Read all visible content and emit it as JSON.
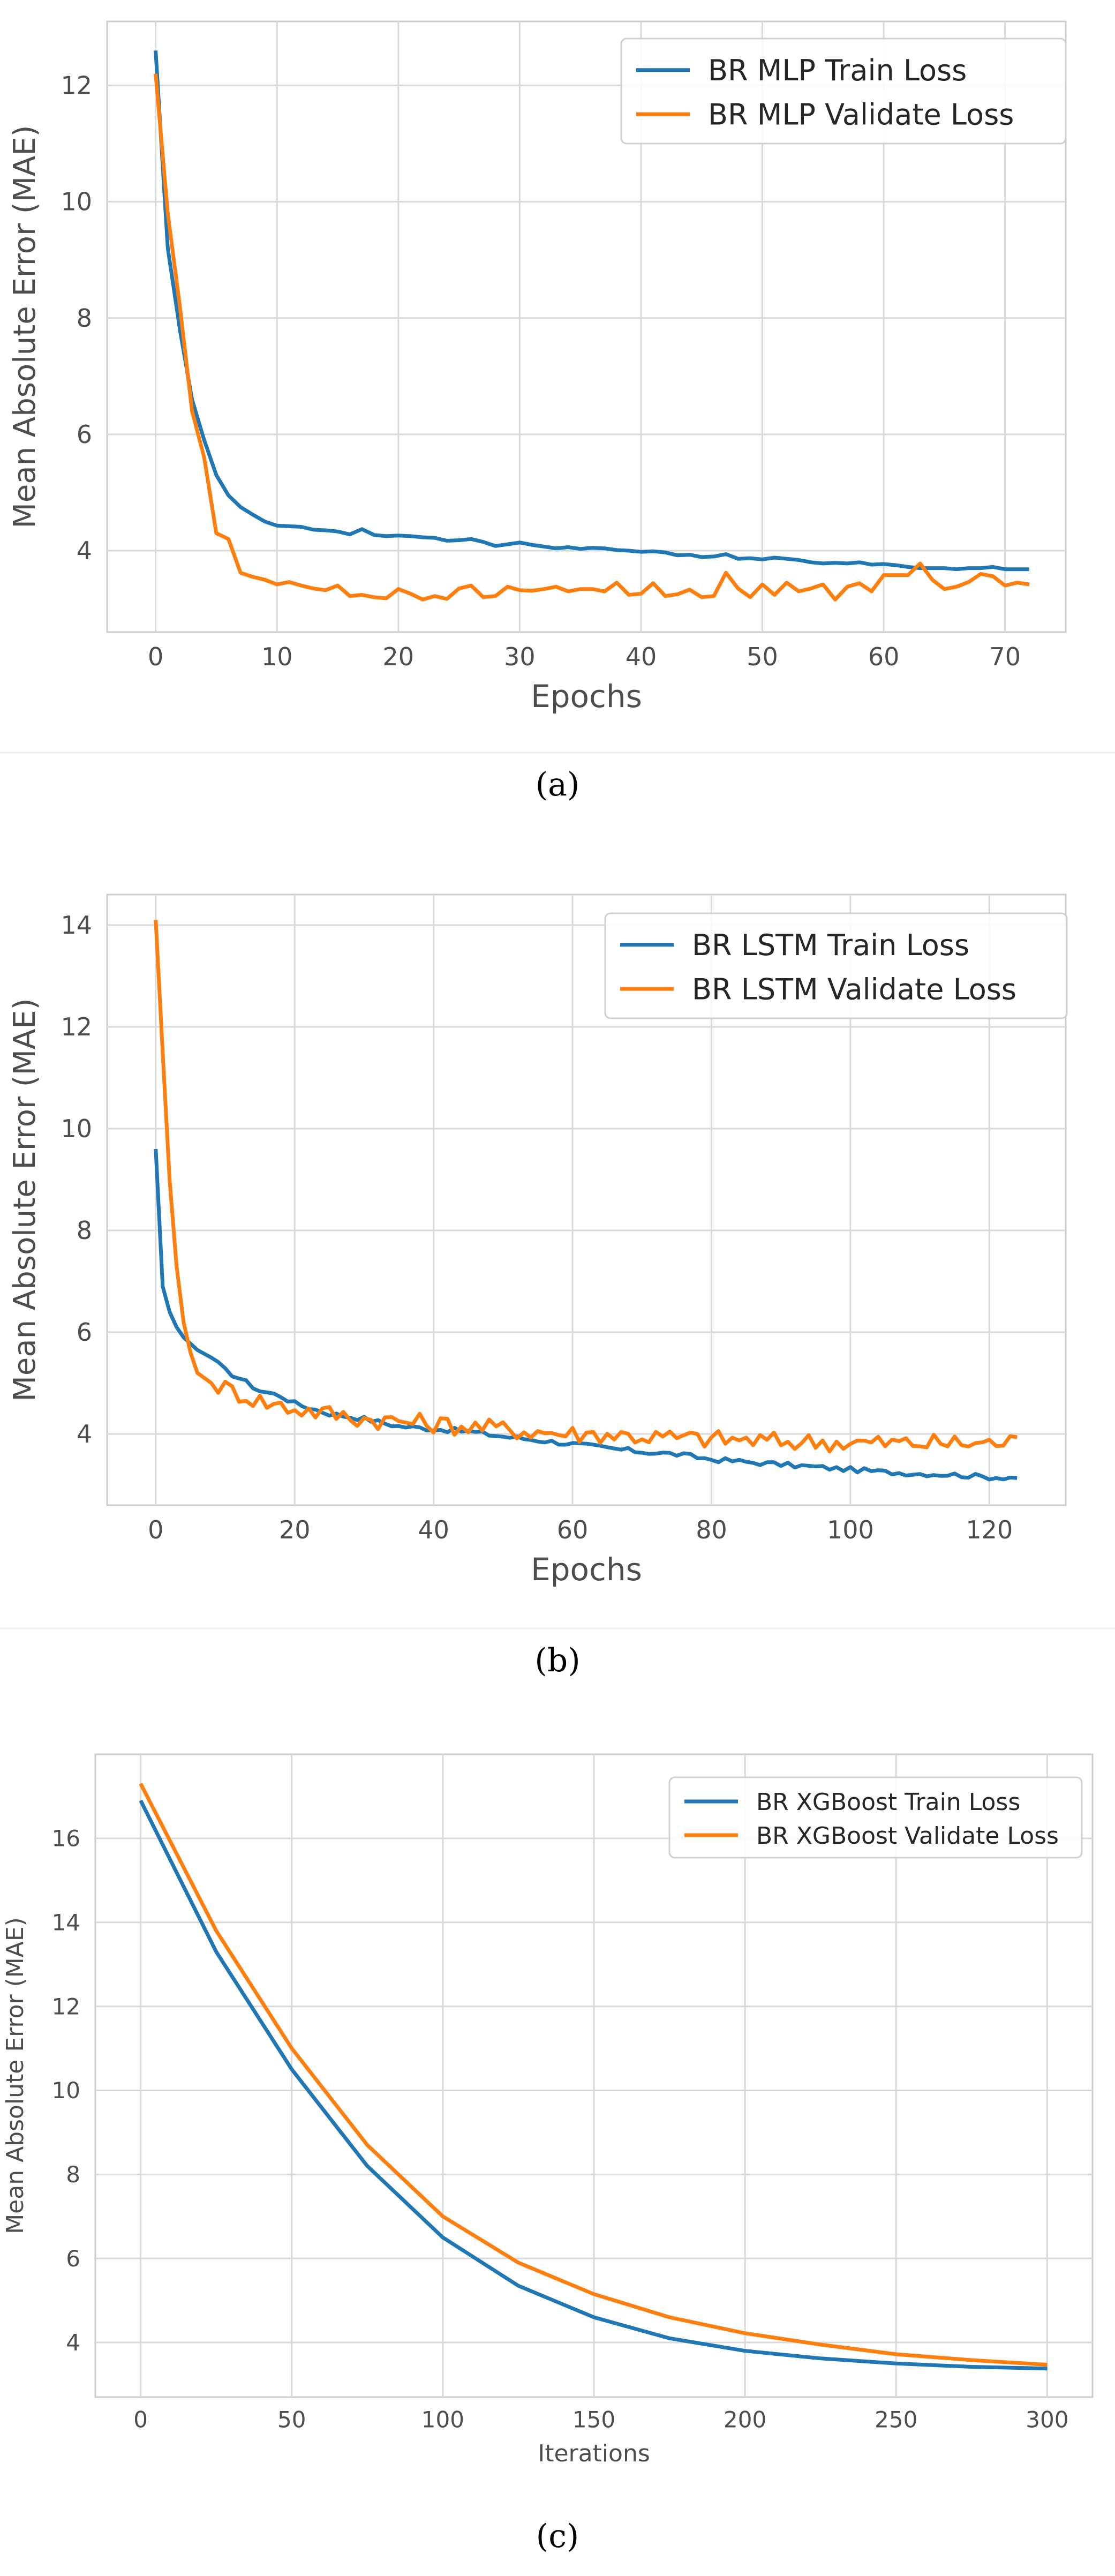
{
  "chart_data": [
    {
      "type": "line",
      "panel_label": "(a)",
      "xlabel": "Epochs",
      "ylabel": "Mean Absolute Error (MAE)",
      "xlim": [
        -4,
        75
      ],
      "ylim": [
        2.6,
        13.1
      ],
      "xticks": [
        0,
        10,
        20,
        30,
        40,
        50,
        60,
        70
      ],
      "yticks": [
        4,
        6,
        8,
        10,
        12
      ],
      "legend_position": "top-right",
      "x": [
        0,
        1,
        2,
        3,
        4,
        5,
        6,
        7,
        8,
        9,
        10,
        11,
        12,
        13,
        14,
        15,
        16,
        17,
        18,
        19,
        20,
        21,
        22,
        23,
        24,
        25,
        26,
        27,
        28,
        29,
        30,
        31,
        32,
        33,
        34,
        35,
        36,
        37,
        38,
        39,
        40,
        41,
        42,
        43,
        44,
        45,
        46,
        47,
        48,
        49,
        50,
        51,
        52,
        53,
        54,
        55,
        56,
        57,
        58,
        59,
        60,
        61,
        62,
        63,
        64,
        65,
        66,
        67,
        68,
        69,
        70,
        71,
        72
      ],
      "series": [
        {
          "name": "BR MLP Train Loss",
          "color": "#1f77b4",
          "values": [
            12.6,
            9.2,
            7.8,
            6.6,
            5.9,
            5.3,
            4.95,
            4.75,
            4.62,
            4.5,
            4.43,
            4.42,
            4.41,
            4.36,
            4.35,
            4.33,
            4.28,
            4.37,
            4.27,
            4.25,
            4.26,
            4.25,
            4.23,
            4.22,
            4.17,
            4.18,
            4.2,
            4.15,
            4.08,
            4.11,
            4.14,
            4.1,
            4.07,
            4.04,
            4.06,
            4.03,
            4.05,
            4.04,
            4.01,
            4.0,
            3.98,
            3.99,
            3.97,
            3.92,
            3.93,
            3.89,
            3.9,
            3.94,
            3.86,
            3.87,
            3.85,
            3.88,
            3.86,
            3.84,
            3.8,
            3.78,
            3.79,
            3.78,
            3.8,
            3.76,
            3.77,
            3.75,
            3.72,
            3.7,
            3.7,
            3.7,
            3.68,
            3.7,
            3.7,
            3.72,
            3.68,
            3.68,
            3.68
          ]
        },
        {
          "name": "BR MLP Validate Loss",
          "color": "#ff7f0e",
          "values": [
            12.2,
            9.8,
            8.2,
            6.4,
            5.6,
            4.3,
            4.2,
            3.62,
            3.55,
            3.5,
            3.42,
            3.46,
            3.4,
            3.35,
            3.32,
            3.4,
            3.22,
            3.24,
            3.2,
            3.18,
            3.34,
            3.26,
            3.16,
            3.22,
            3.17,
            3.35,
            3.4,
            3.2,
            3.22,
            3.38,
            3.32,
            3.31,
            3.34,
            3.38,
            3.3,
            3.34,
            3.34,
            3.3,
            3.45,
            3.24,
            3.26,
            3.44,
            3.22,
            3.25,
            3.33,
            3.2,
            3.22,
            3.62,
            3.35,
            3.2,
            3.42,
            3.24,
            3.45,
            3.3,
            3.35,
            3.42,
            3.16,
            3.38,
            3.44,
            3.3,
            3.58,
            3.58,
            3.58,
            3.78,
            3.5,
            3.34,
            3.38,
            3.46,
            3.6,
            3.56,
            3.4,
            3.45,
            3.42
          ]
        }
      ]
    },
    {
      "type": "line",
      "panel_label": "(b)",
      "xlabel": "Epochs",
      "ylabel": "Mean Absolute Error (MAE)",
      "xlim": [
        -7,
        131
      ],
      "ylim": [
        2.6,
        14.6
      ],
      "xticks": [
        0,
        20,
        40,
        60,
        80,
        100,
        120
      ],
      "yticks": [
        4,
        6,
        8,
        10,
        12,
        14
      ],
      "legend_position": "top-right",
      "series": [
        {
          "name": "BR LSTM Train Loss",
          "color": "#1f77b4",
          "anchors": [
            [
              0,
              9.6
            ],
            [
              1,
              6.9
            ],
            [
              2,
              6.4
            ],
            [
              3,
              6.1
            ],
            [
              4,
              5.9
            ],
            [
              6,
              5.65
            ],
            [
              8,
              5.5
            ],
            [
              10,
              5.25
            ],
            [
              12,
              5.1
            ],
            [
              15,
              4.85
            ],
            [
              18,
              4.75
            ],
            [
              20,
              4.6
            ],
            [
              25,
              4.4
            ],
            [
              30,
              4.3
            ],
            [
              35,
              4.15
            ],
            [
              40,
              4.1
            ],
            [
              45,
              4.05
            ],
            [
              50,
              3.95
            ],
            [
              55,
              3.88
            ],
            [
              60,
              3.8
            ],
            [
              65,
              3.72
            ],
            [
              70,
              3.65
            ],
            [
              75,
              3.6
            ],
            [
              80,
              3.5
            ],
            [
              85,
              3.45
            ],
            [
              90,
              3.4
            ],
            [
              95,
              3.35
            ],
            [
              100,
              3.3
            ],
            [
              105,
              3.25
            ],
            [
              110,
              3.22
            ],
            [
              115,
              3.2
            ],
            [
              120,
              3.15
            ],
            [
              124,
              3.15
            ]
          ]
        },
        {
          "name": "BR LSTM Validate Loss",
          "color": "#ff7f0e",
          "anchors": [
            [
              0,
              14.1
            ],
            [
              1,
              11.5
            ],
            [
              2,
              9.0
            ],
            [
              3,
              7.3
            ],
            [
              4,
              6.2
            ],
            [
              5,
              5.6
            ],
            [
              6,
              5.2
            ],
            [
              8,
              5.0
            ],
            [
              10,
              4.9
            ],
            [
              12,
              4.8
            ],
            [
              15,
              4.65
            ],
            [
              18,
              4.55
            ],
            [
              20,
              4.5
            ],
            [
              25,
              4.4
            ],
            [
              30,
              4.3
            ],
            [
              35,
              4.25
            ],
            [
              40,
              4.2
            ],
            [
              45,
              4.15
            ],
            [
              50,
              4.1
            ],
            [
              55,
              4.05
            ],
            [
              60,
              4.0
            ],
            [
              65,
              4.0
            ],
            [
              70,
              3.95
            ],
            [
              75,
              3.92
            ],
            [
              80,
              3.9
            ],
            [
              85,
              3.88
            ],
            [
              90,
              3.85
            ],
            [
              95,
              3.85
            ],
            [
              100,
              3.83
            ],
            [
              105,
              3.82
            ],
            [
              110,
              3.82
            ],
            [
              115,
              3.82
            ],
            [
              120,
              3.82
            ],
            [
              124,
              3.85
            ]
          ]
        }
      ]
    },
    {
      "type": "line",
      "panel_label": "(c)",
      "xlabel": "Iterations",
      "ylabel": "Mean Absolute Error (MAE)",
      "xlim": [
        -15,
        315
      ],
      "ylim": [
        2.7,
        18.0
      ],
      "xticks": [
        0,
        50,
        100,
        150,
        200,
        250,
        300
      ],
      "yticks": [
        4,
        6,
        8,
        10,
        12,
        14,
        16
      ],
      "legend_position": "top-right",
      "series": [
        {
          "name": "BR XGBoost Train Loss",
          "color": "#1f77b4",
          "values": [
            16.9,
            13.3,
            10.5,
            8.2,
            6.5,
            5.35,
            4.6,
            4.1,
            3.8,
            3.62,
            3.5,
            3.42,
            3.38
          ]
        },
        {
          "name": "BR XGBoost Validate Loss",
          "color": "#ff7f0e",
          "values": [
            17.3,
            13.8,
            11.0,
            8.7,
            7.0,
            5.9,
            5.15,
            4.6,
            4.22,
            3.95,
            3.72,
            3.58,
            3.47
          ]
        },
        {
          "x": [
            0,
            25,
            50,
            75,
            100,
            125,
            150,
            175,
            200,
            225,
            250,
            275,
            300
          ]
        }
      ]
    }
  ]
}
